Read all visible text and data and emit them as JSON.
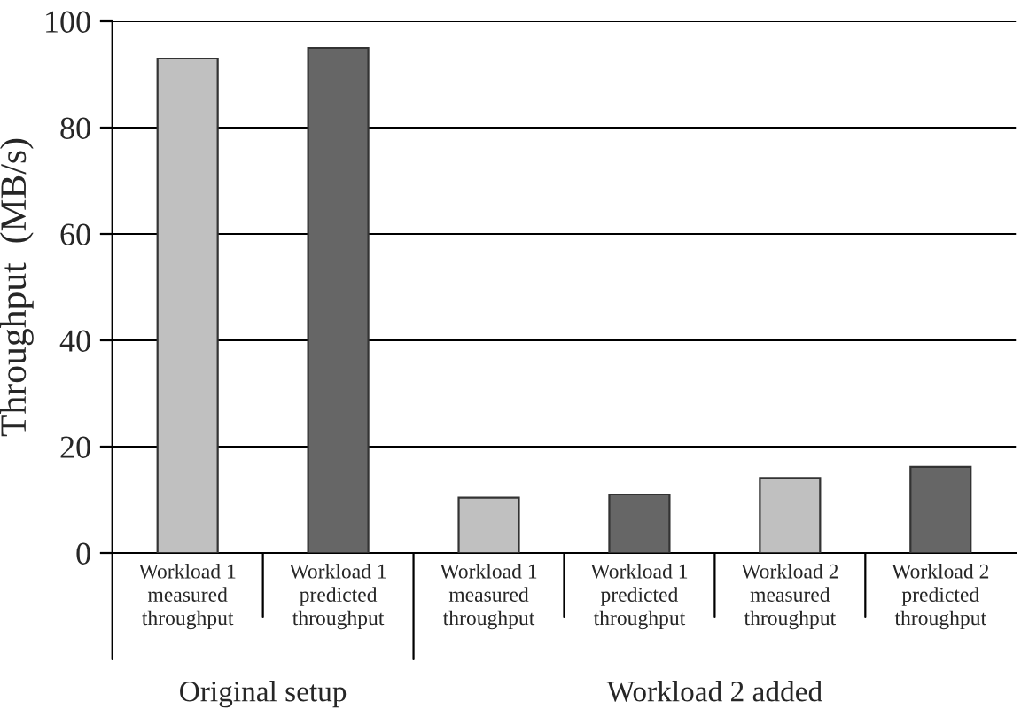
{
  "chart_data": {
    "type": "bar",
    "ylabel": "Throughput  (MB/s)",
    "categories": [
      "Workload 1\nmeasured\nthroughput",
      "Workload 1\npredicted\nthroughput",
      "Workload 1\nmeasured\nthroughput",
      "Workload 1\npredicted\nthroughput",
      "Workload 2\nmeasured\nthroughput",
      "Workload 2\npredicted\nthroughput"
    ],
    "values": [
      93,
      95,
      10.4,
      11,
      14.1,
      16.2
    ],
    "colors": [
      "#c0c0c0",
      "#666666",
      "#c0c0c0",
      "#666666",
      "#c0c0c0",
      "#666666"
    ],
    "ylim": [
      0,
      100
    ],
    "yticks": [
      0,
      20,
      40,
      60,
      80,
      100
    ],
    "grid": "y",
    "annotations": [
      "Original setup",
      "Workload 2 added"
    ]
  }
}
